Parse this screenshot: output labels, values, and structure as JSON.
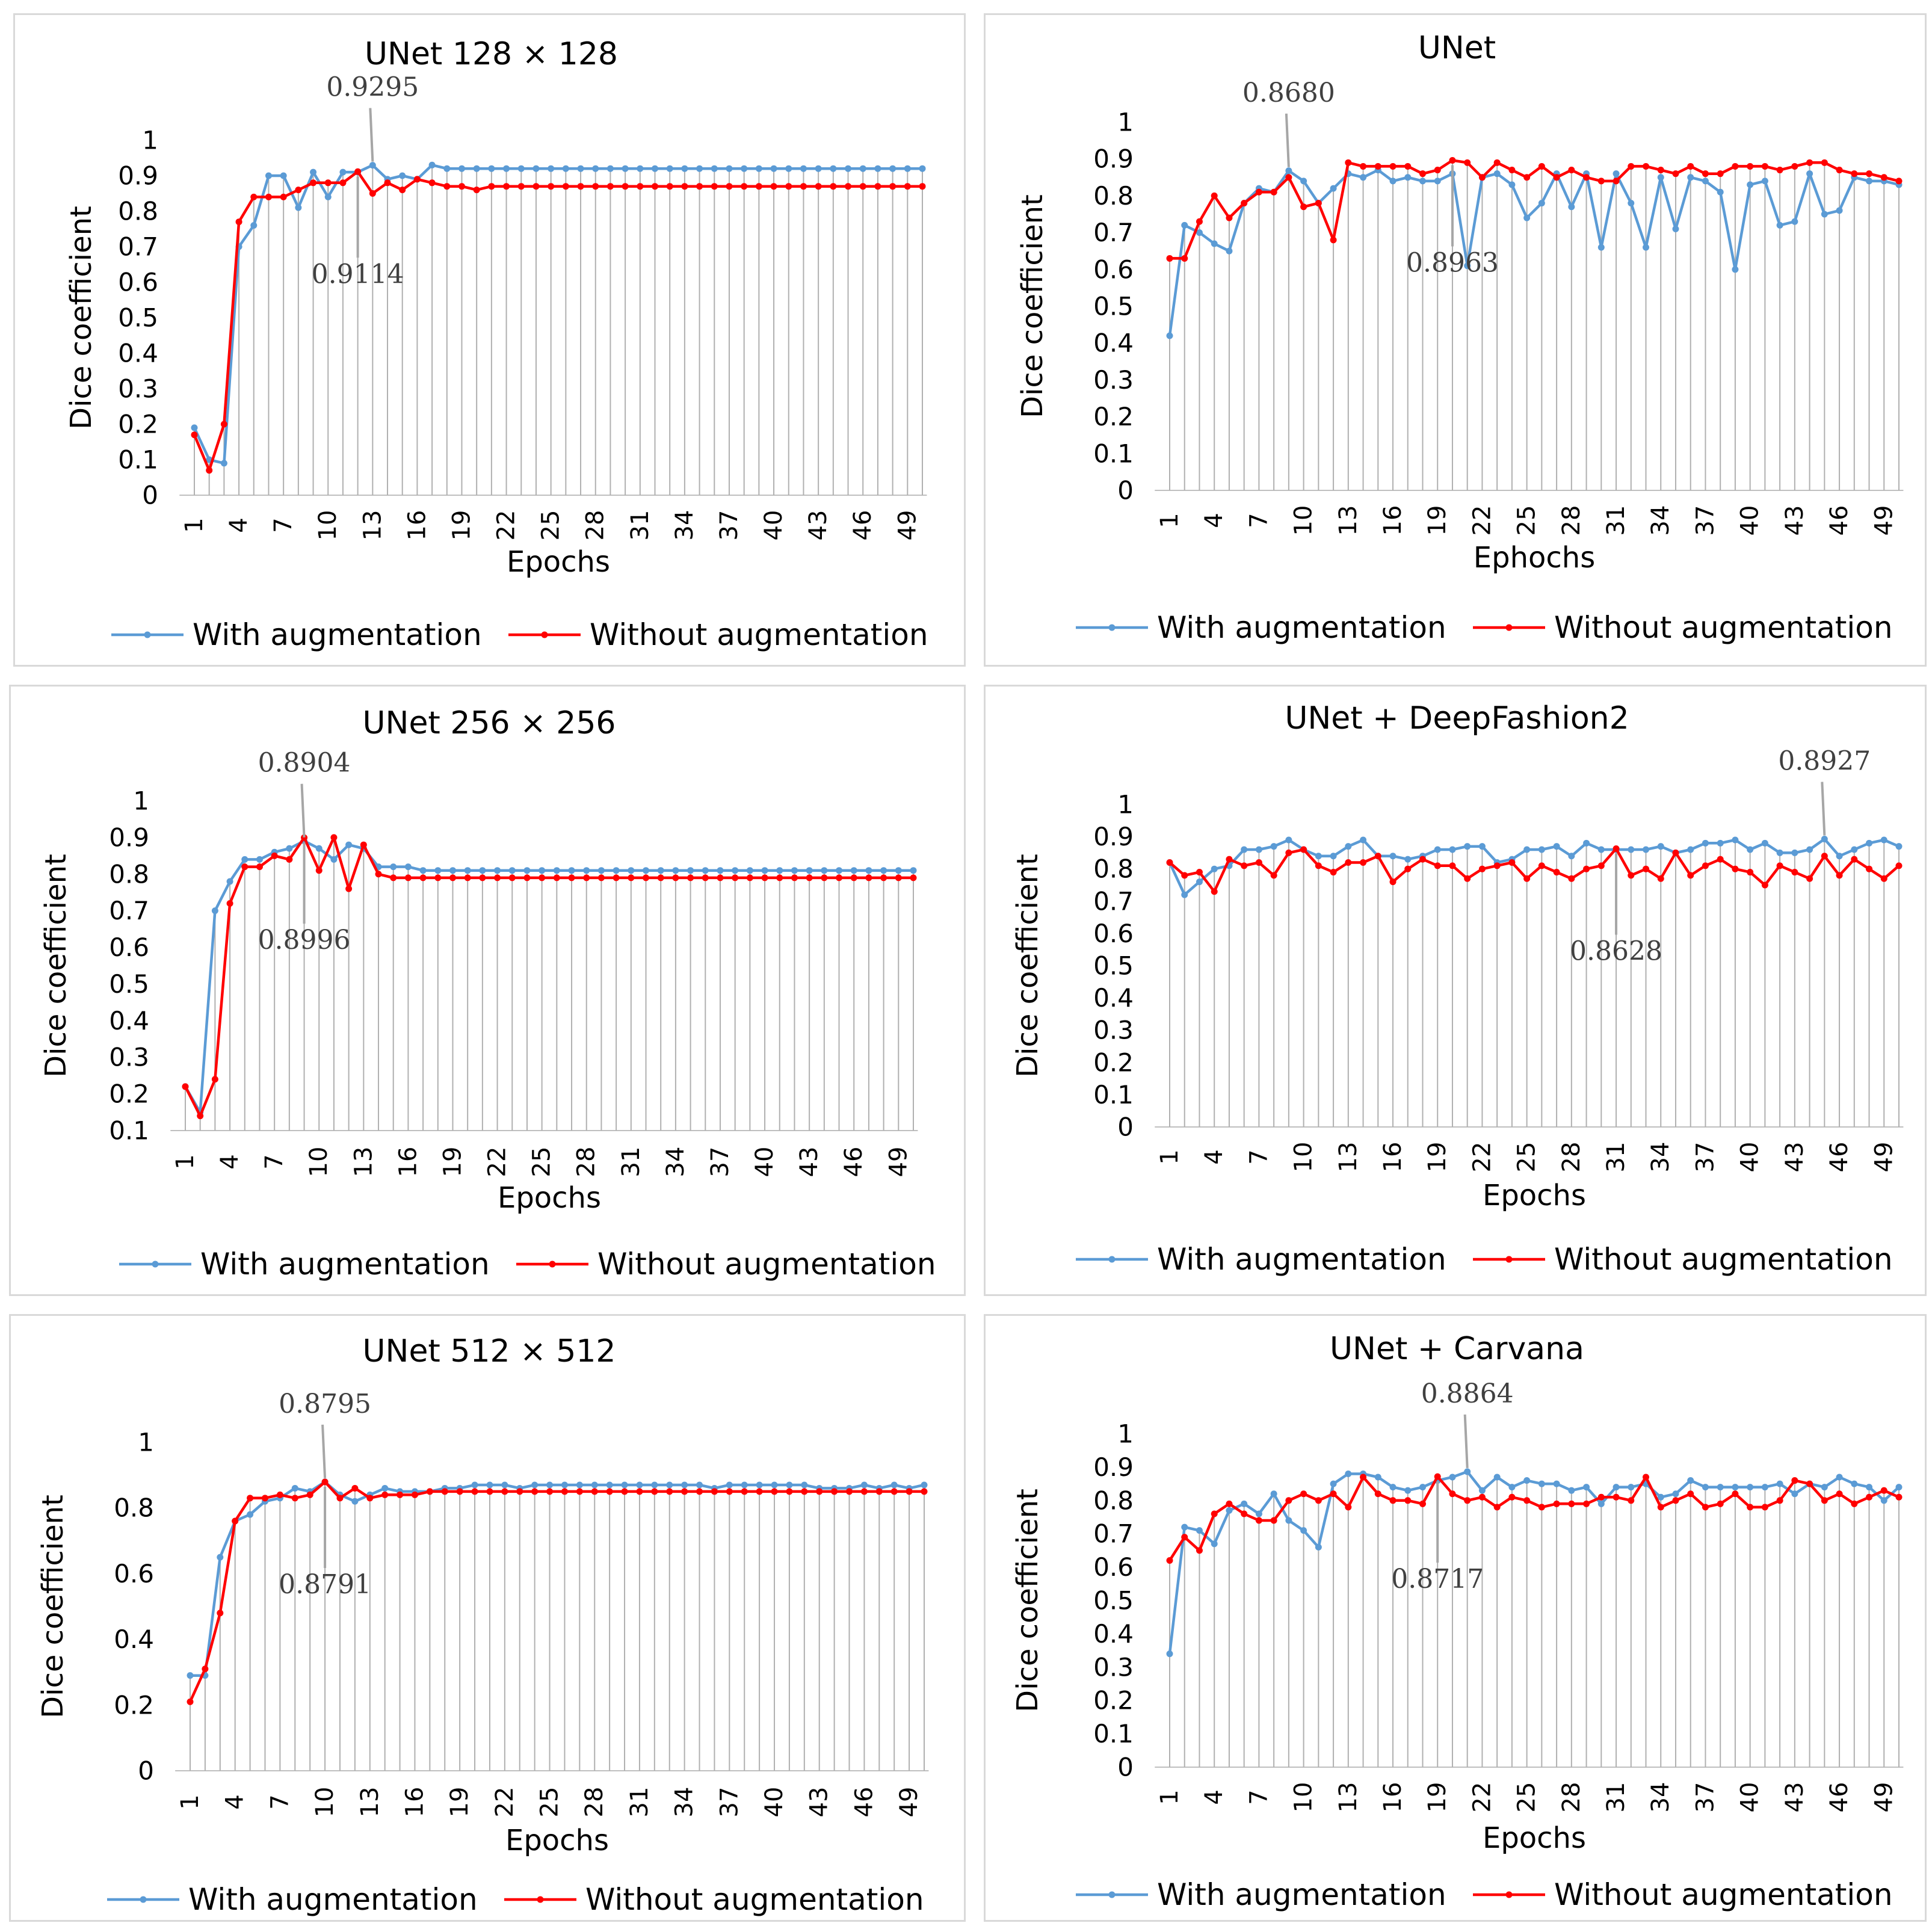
{
  "colors": {
    "with": "#5b9bd5",
    "without": "#ff0000",
    "grid": "#b0b0b0",
    "callout": "#a6a6a6",
    "text": "#000000",
    "callout_text": "#404040"
  },
  "chart_data": [
    {
      "type": "line",
      "title": "UNet 128 × 128",
      "xlabel": "Epochs",
      "ylabel": "Dice coefficient",
      "ylim": [
        0,
        1
      ],
      "yticks": [
        "0",
        "0.1",
        "0.2",
        "0.3",
        "0.4",
        "0.5",
        "0.6",
        "0.7",
        "0.8",
        "0.9",
        "1"
      ],
      "xtick_labels": [
        "1",
        "4",
        "7",
        "10",
        "13",
        "16",
        "19",
        "22",
        "25",
        "28",
        "31",
        "34",
        "37",
        "40",
        "43",
        "46",
        "49"
      ],
      "legend": {
        "position": "bottom",
        "labels": [
          "With augmentation",
          "Without augmentation"
        ]
      },
      "series": [
        {
          "name": "With augmentation",
          "values": [
            0.19,
            0.1,
            0.09,
            0.7,
            0.76,
            0.9,
            0.9,
            0.81,
            0.91,
            0.84,
            0.91,
            0.91,
            0.9295,
            0.89,
            0.9,
            0.89,
            0.93,
            0.92,
            0.92,
            0.92,
            0.92,
            0.92,
            0.92,
            0.92,
            0.92,
            0.92,
            0.92,
            0.92,
            0.92,
            0.92,
            0.92,
            0.92,
            0.92,
            0.92,
            0.92,
            0.92,
            0.92,
            0.92,
            0.92,
            0.92,
            0.92,
            0.92,
            0.92,
            0.92,
            0.92,
            0.92,
            0.92,
            0.92,
            0.92,
            0.92
          ]
        },
        {
          "name": "Without augmentation",
          "values": [
            0.17,
            0.07,
            0.2,
            0.77,
            0.84,
            0.84,
            0.84,
            0.86,
            0.88,
            0.88,
            0.88,
            0.9114,
            0.85,
            0.88,
            0.86,
            0.89,
            0.88,
            0.87,
            0.87,
            0.86,
            0.87,
            0.87,
            0.87,
            0.87,
            0.87,
            0.87,
            0.87,
            0.87,
            0.87,
            0.87,
            0.87,
            0.87,
            0.87,
            0.87,
            0.87,
            0.87,
            0.87,
            0.87,
            0.87,
            0.87,
            0.87,
            0.87,
            0.87,
            0.87,
            0.87,
            0.87,
            0.87,
            0.87,
            0.87,
            0.87
          ]
        }
      ],
      "annotations": [
        {
          "text": "0.9295",
          "epoch": 13,
          "value": 0.9295,
          "position": "above"
        },
        {
          "text": "0.9114",
          "epoch": 12,
          "value": 0.9114,
          "position": "below"
        }
      ]
    },
    {
      "type": "line",
      "title": "UNet",
      "xlabel": "Ephochs",
      "ylabel": "Dice coefficient",
      "ylim": [
        0,
        1
      ],
      "yticks": [
        "0",
        "0.1",
        "0.2",
        "0.3",
        "0.4",
        "0.5",
        "0.6",
        "0.7",
        "0.8",
        "0.9",
        "1"
      ],
      "xtick_labels": [
        "1",
        "4",
        "7",
        "10",
        "13",
        "16",
        "19",
        "22",
        "25",
        "28",
        "31",
        "34",
        "37",
        "40",
        "43",
        "46",
        "49"
      ],
      "legend": {
        "position": "bottom",
        "labels": [
          "With augmentation",
          "Without augmentation"
        ]
      },
      "series": [
        {
          "name": "With augmentation",
          "values": [
            0.42,
            0.72,
            0.7,
            0.67,
            0.65,
            0.78,
            0.82,
            0.81,
            0.868,
            0.84,
            0.78,
            0.82,
            0.86,
            0.85,
            0.87,
            0.84,
            0.85,
            0.84,
            0.84,
            0.86,
            0.61,
            0.85,
            0.86,
            0.83,
            0.74,
            0.78,
            0.86,
            0.77,
            0.86,
            0.66,
            0.86,
            0.78,
            0.66,
            0.85,
            0.71,
            0.85,
            0.84,
            0.81,
            0.6,
            0.83,
            0.84,
            0.72,
            0.73,
            0.86,
            0.75,
            0.76,
            0.85,
            0.84,
            0.84,
            0.83
          ]
        },
        {
          "name": "Without augmentation",
          "values": [
            0.63,
            0.63,
            0.73,
            0.8,
            0.74,
            0.78,
            0.81,
            0.81,
            0.85,
            0.77,
            0.78,
            0.68,
            0.89,
            0.88,
            0.88,
            0.88,
            0.88,
            0.86,
            0.87,
            0.8963,
            0.89,
            0.85,
            0.89,
            0.87,
            0.85,
            0.88,
            0.85,
            0.87,
            0.85,
            0.84,
            0.84,
            0.88,
            0.88,
            0.87,
            0.86,
            0.88,
            0.86,
            0.86,
            0.88,
            0.88,
            0.88,
            0.87,
            0.88,
            0.89,
            0.89,
            0.87,
            0.86,
            0.86,
            0.85,
            0.84
          ]
        }
      ],
      "annotations": [
        {
          "text": "0.8680",
          "epoch": 9,
          "value": 0.868,
          "position": "above"
        },
        {
          "text": "0.8963",
          "epoch": 20,
          "value": 0.8963,
          "position": "below"
        }
      ]
    },
    {
      "type": "line",
      "title": "UNet 256 × 256",
      "xlabel": "Epochs",
      "ylabel": "Dice coefficient",
      "ylim": [
        0.1,
        1
      ],
      "yticks": [
        "0.1",
        "0.2",
        "0.3",
        "0.4",
        "0.5",
        "0.6",
        "0.7",
        "0.8",
        "0.9",
        "1"
      ],
      "xtick_labels": [
        "1",
        "4",
        "7",
        "10",
        "13",
        "16",
        "19",
        "22",
        "25",
        "28",
        "31",
        "34",
        "37",
        "40",
        "43",
        "46",
        "49"
      ],
      "legend": {
        "position": "bottom",
        "labels": [
          "With augmentation",
          "Without augmentation"
        ]
      },
      "series": [
        {
          "name": "With augmentation",
          "values": [
            0.22,
            0.15,
            0.7,
            0.78,
            0.84,
            0.84,
            0.86,
            0.87,
            0.8904,
            0.87,
            0.84,
            0.88,
            0.87,
            0.82,
            0.82,
            0.82,
            0.81,
            0.81,
            0.81,
            0.81,
            0.81,
            0.81,
            0.81,
            0.81,
            0.81,
            0.81,
            0.81,
            0.81,
            0.81,
            0.81,
            0.81,
            0.81,
            0.81,
            0.81,
            0.81,
            0.81,
            0.81,
            0.81,
            0.81,
            0.81,
            0.81,
            0.81,
            0.81,
            0.81,
            0.81,
            0.81,
            0.81,
            0.81,
            0.81,
            0.81
          ]
        },
        {
          "name": "Without augmentation",
          "values": [
            0.22,
            0.14,
            0.24,
            0.72,
            0.82,
            0.82,
            0.85,
            0.84,
            0.8996,
            0.81,
            0.9,
            0.76,
            0.88,
            0.8,
            0.79,
            0.79,
            0.79,
            0.79,
            0.79,
            0.79,
            0.79,
            0.79,
            0.79,
            0.79,
            0.79,
            0.79,
            0.79,
            0.79,
            0.79,
            0.79,
            0.79,
            0.79,
            0.79,
            0.79,
            0.79,
            0.79,
            0.79,
            0.79,
            0.79,
            0.79,
            0.79,
            0.79,
            0.79,
            0.79,
            0.79,
            0.79,
            0.79,
            0.79,
            0.79,
            0.79
          ]
        }
      ],
      "annotations": [
        {
          "text": "0.8904",
          "epoch": 9,
          "value": 0.8904,
          "position": "above"
        },
        {
          "text": "0.8996",
          "epoch": 9,
          "value": 0.8996,
          "position": "below"
        }
      ]
    },
    {
      "type": "line",
      "title": "UNet + DeepFashion2",
      "xlabel": "Epochs",
      "ylabel": "Dice coefficient",
      "ylim": [
        0,
        1
      ],
      "yticks": [
        "0",
        "0.1",
        "0.2",
        "0.3",
        "0.4",
        "0.5",
        "0.6",
        "0.7",
        "0.8",
        "0.9",
        "1"
      ],
      "xtick_labels": [
        "1",
        "4",
        "7",
        "10",
        "13",
        "16",
        "19",
        "22",
        "25",
        "28",
        "31",
        "34",
        "37",
        "40",
        "43",
        "46",
        "49"
      ],
      "legend": {
        "position": "bottom",
        "labels": [
          "With augmentation",
          "Without augmentation"
        ]
      },
      "series": [
        {
          "name": "With augmentation",
          "values": [
            0.82,
            0.72,
            0.76,
            0.8,
            0.81,
            0.86,
            0.86,
            0.87,
            0.89,
            0.86,
            0.84,
            0.84,
            0.87,
            0.89,
            0.84,
            0.84,
            0.83,
            0.84,
            0.86,
            0.86,
            0.87,
            0.87,
            0.82,
            0.83,
            0.86,
            0.86,
            0.87,
            0.84,
            0.88,
            0.86,
            0.86,
            0.86,
            0.86,
            0.87,
            0.85,
            0.86,
            0.88,
            0.88,
            0.89,
            0.86,
            0.88,
            0.85,
            0.85,
            0.86,
            0.8927,
            0.84,
            0.86,
            0.88,
            0.89,
            0.87
          ]
        },
        {
          "name": "Without augmentation",
          "values": [
            0.82,
            0.78,
            0.79,
            0.73,
            0.83,
            0.81,
            0.82,
            0.78,
            0.85,
            0.86,
            0.81,
            0.79,
            0.82,
            0.82,
            0.84,
            0.76,
            0.8,
            0.83,
            0.81,
            0.81,
            0.77,
            0.8,
            0.81,
            0.82,
            0.77,
            0.81,
            0.79,
            0.77,
            0.8,
            0.81,
            0.8628,
            0.78,
            0.8,
            0.77,
            0.85,
            0.78,
            0.81,
            0.83,
            0.8,
            0.79,
            0.75,
            0.81,
            0.79,
            0.77,
            0.84,
            0.78,
            0.83,
            0.8,
            0.77,
            0.81
          ]
        }
      ],
      "annotations": [
        {
          "text": "0.8927",
          "epoch": 45,
          "value": 0.8927,
          "position": "above"
        },
        {
          "text": "0.8628",
          "epoch": 31,
          "value": 0.8628,
          "position": "below"
        }
      ]
    },
    {
      "type": "line",
      "title": "UNet 512 × 512",
      "xlabel": "Epochs",
      "ylabel": "Dice coefficient",
      "ylim": [
        0,
        1
      ],
      "yticks": [
        "0",
        "0.2",
        "0.4",
        "0.6",
        "0.8",
        "1"
      ],
      "xtick_labels": [
        "1",
        "4",
        "7",
        "10",
        "13",
        "16",
        "19",
        "22",
        "25",
        "28",
        "31",
        "34",
        "37",
        "40",
        "43",
        "46",
        "49"
      ],
      "legend": {
        "position": "bottom",
        "labels": [
          "With augmentation",
          "Without augmentation"
        ]
      },
      "series": [
        {
          "name": "With augmentation",
          "values": [
            0.29,
            0.29,
            0.65,
            0.76,
            0.78,
            0.82,
            0.83,
            0.86,
            0.85,
            0.8795,
            0.84,
            0.82,
            0.84,
            0.86,
            0.85,
            0.85,
            0.85,
            0.86,
            0.86,
            0.87,
            0.87,
            0.87,
            0.86,
            0.87,
            0.87,
            0.87,
            0.87,
            0.87,
            0.87,
            0.87,
            0.87,
            0.87,
            0.87,
            0.87,
            0.87,
            0.86,
            0.87,
            0.87,
            0.87,
            0.87,
            0.87,
            0.87,
            0.86,
            0.86,
            0.86,
            0.87,
            0.86,
            0.87,
            0.86,
            0.87
          ]
        },
        {
          "name": "Without augmentation",
          "values": [
            0.21,
            0.31,
            0.48,
            0.76,
            0.83,
            0.83,
            0.84,
            0.83,
            0.84,
            0.8791,
            0.83,
            0.86,
            0.83,
            0.84,
            0.84,
            0.84,
            0.85,
            0.85,
            0.85,
            0.85,
            0.85,
            0.85,
            0.85,
            0.85,
            0.85,
            0.85,
            0.85,
            0.85,
            0.85,
            0.85,
            0.85,
            0.85,
            0.85,
            0.85,
            0.85,
            0.85,
            0.85,
            0.85,
            0.85,
            0.85,
            0.85,
            0.85,
            0.85,
            0.85,
            0.85,
            0.85,
            0.85,
            0.85,
            0.85,
            0.85
          ]
        }
      ],
      "annotations": [
        {
          "text": "0.8795",
          "epoch": 10,
          "value": 0.8795,
          "position": "above"
        },
        {
          "text": "0.8791",
          "epoch": 10,
          "value": 0.8791,
          "position": "below"
        }
      ]
    },
    {
      "type": "line",
      "title": "UNet + Carvana",
      "xlabel": "Epochs",
      "ylabel": "Dice coefficient",
      "ylim": [
        0,
        1
      ],
      "yticks": [
        "0",
        "0.1",
        "0.2",
        "0.3",
        "0.4",
        "0.5",
        "0.6",
        "0.7",
        "0.8",
        "0.9",
        "1"
      ],
      "xtick_labels": [
        "1",
        "4",
        "7",
        "10",
        "13",
        "16",
        "19",
        "22",
        "25",
        "28",
        "31",
        "34",
        "37",
        "40",
        "43",
        "46",
        "49"
      ],
      "legend": {
        "position": "bottom",
        "labels": [
          "With augmentation",
          "Without augmentation"
        ]
      },
      "series": [
        {
          "name": "With augmentation",
          "values": [
            0.34,
            0.72,
            0.71,
            0.67,
            0.77,
            0.79,
            0.76,
            0.82,
            0.74,
            0.71,
            0.66,
            0.85,
            0.88,
            0.88,
            0.87,
            0.84,
            0.83,
            0.84,
            0.86,
            0.87,
            0.8864,
            0.83,
            0.87,
            0.84,
            0.86,
            0.85,
            0.85,
            0.83,
            0.84,
            0.79,
            0.84,
            0.84,
            0.85,
            0.81,
            0.82,
            0.86,
            0.84,
            0.84,
            0.84,
            0.84,
            0.84,
            0.85,
            0.82,
            0.85,
            0.84,
            0.87,
            0.85,
            0.84,
            0.8,
            0.84
          ]
        },
        {
          "name": "Without augmentation",
          "values": [
            0.62,
            0.69,
            0.65,
            0.76,
            0.79,
            0.76,
            0.74,
            0.74,
            0.8,
            0.82,
            0.8,
            0.82,
            0.78,
            0.87,
            0.82,
            0.8,
            0.8,
            0.79,
            0.8717,
            0.82,
            0.8,
            0.81,
            0.78,
            0.81,
            0.8,
            0.78,
            0.79,
            0.79,
            0.79,
            0.81,
            0.81,
            0.8,
            0.87,
            0.78,
            0.8,
            0.82,
            0.78,
            0.79,
            0.82,
            0.78,
            0.78,
            0.8,
            0.86,
            0.85,
            0.8,
            0.82,
            0.79,
            0.81,
            0.83,
            0.81
          ]
        }
      ],
      "annotations": [
        {
          "text": "0.8864",
          "epoch": 21,
          "value": 0.8864,
          "position": "above"
        },
        {
          "text": "0.8717",
          "epoch": 19,
          "value": 0.8717,
          "position": "below"
        }
      ]
    }
  ]
}
